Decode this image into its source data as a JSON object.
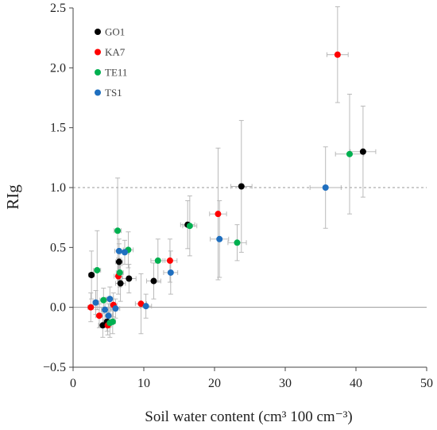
{
  "chart_data": {
    "type": "scatter",
    "xlabel": "Soil water content  (cm³ 100 cm⁻³)",
    "ylabel": "RIg",
    "xlim": [
      0,
      50
    ],
    "ylim": [
      -0.5,
      2.5
    ],
    "xticks": [
      "0",
      "10",
      "20",
      "30",
      "40",
      "50"
    ],
    "yticks": [
      "−0.5",
      "0.0",
      "0.5",
      "1.0",
      "1.5",
      "2.0",
      "2.5"
    ],
    "legend_position": "top-left",
    "reference_lines": [
      {
        "y": 0.0,
        "style": "solid"
      },
      {
        "y": 1.0,
        "style": "dashed"
      }
    ],
    "series": [
      {
        "name": "GO1",
        "color": "#000000",
        "points": [
          {
            "x": 2.6,
            "y": 0.27,
            "xerr": 0.4,
            "yerr": 0.2
          },
          {
            "x": 4.2,
            "y": -0.15,
            "xerr": 0.6,
            "yerr": 0.1
          },
          {
            "x": 4.8,
            "y": -0.12,
            "xerr": 0.5,
            "yerr": 0.08
          },
          {
            "x": 6.5,
            "y": 0.38,
            "xerr": 0.5,
            "yerr": 0.15
          },
          {
            "x": 6.7,
            "y": 0.2,
            "xerr": 0.7,
            "yerr": 0.15
          },
          {
            "x": 7.9,
            "y": 0.24,
            "xerr": 1.0,
            "yerr": 0.12
          },
          {
            "x": 11.4,
            "y": 0.22,
            "xerr": 1.0,
            "yerr": 0.15
          },
          {
            "x": 16.2,
            "y": 0.69,
            "xerr": 1.0,
            "yerr": 0.2
          },
          {
            "x": 23.8,
            "y": 1.01,
            "xerr": 1.5,
            "yerr": 0.55
          },
          {
            "x": 41.0,
            "y": 1.3,
            "xerr": 1.8,
            "yerr": 0.38
          }
        ]
      },
      {
        "name": "KA7",
        "color": "#ff0000",
        "points": [
          {
            "x": 2.5,
            "y": 0.0,
            "xerr": 0.4,
            "yerr": 0.12
          },
          {
            "x": 3.7,
            "y": -0.07,
            "xerr": 0.5,
            "yerr": 0.1
          },
          {
            "x": 4.9,
            "y": -0.15,
            "xerr": 0.5,
            "yerr": 0.08
          },
          {
            "x": 5.7,
            "y": 0.02,
            "xerr": 0.5,
            "yerr": 0.1
          },
          {
            "x": 6.4,
            "y": 0.26,
            "xerr": 0.6,
            "yerr": 0.15
          },
          {
            "x": 9.6,
            "y": 0.03,
            "xerr": 0.8,
            "yerr": 0.25
          },
          {
            "x": 13.7,
            "y": 0.39,
            "xerr": 1.0,
            "yerr": 0.18
          },
          {
            "x": 20.5,
            "y": 0.78,
            "xerr": 1.2,
            "yerr": 0.55
          },
          {
            "x": 37.4,
            "y": 2.11,
            "xerr": 1.5,
            "yerr": 0.4
          }
        ]
      },
      {
        "name": "TE11",
        "color": "#00b050",
        "points": [
          {
            "x": 3.4,
            "y": 0.31,
            "xerr": 0.5,
            "yerr": 0.33
          },
          {
            "x": 4.3,
            "y": 0.06,
            "xerr": 0.5,
            "yerr": 0.1
          },
          {
            "x": 5.2,
            "y": -0.13,
            "xerr": 0.5,
            "yerr": 0.12
          },
          {
            "x": 5.6,
            "y": -0.12,
            "xerr": 0.4,
            "yerr": 0.1
          },
          {
            "x": 6.3,
            "y": 0.64,
            "xerr": 0.5,
            "yerr": 0.44
          },
          {
            "x": 6.6,
            "y": 0.29,
            "xerr": 0.5,
            "yerr": 0.12
          },
          {
            "x": 7.8,
            "y": 0.48,
            "xerr": 0.7,
            "yerr": 0.15
          },
          {
            "x": 12.0,
            "y": 0.39,
            "xerr": 1.0,
            "yerr": 0.18
          },
          {
            "x": 16.5,
            "y": 0.68,
            "xerr": 1.0,
            "yerr": 0.25
          },
          {
            "x": 23.2,
            "y": 0.54,
            "xerr": 1.3,
            "yerr": 0.15
          },
          {
            "x": 39.1,
            "y": 1.28,
            "xerr": 2.0,
            "yerr": 0.5
          }
        ]
      },
      {
        "name": "TS1",
        "color": "#1f6fbf",
        "points": [
          {
            "x": 3.2,
            "y": 0.04,
            "xerr": 0.4,
            "yerr": 0.1
          },
          {
            "x": 4.5,
            "y": -0.02,
            "xerr": 0.5,
            "yerr": 0.1
          },
          {
            "x": 5.0,
            "y": -0.07,
            "xerr": 0.5,
            "yerr": 0.1
          },
          {
            "x": 5.2,
            "y": 0.07,
            "xerr": 0.5,
            "yerr": 0.1
          },
          {
            "x": 6.0,
            "y": -0.01,
            "xerr": 0.6,
            "yerr": 0.08
          },
          {
            "x": 6.5,
            "y": 0.47,
            "xerr": 0.6,
            "yerr": 0.1
          },
          {
            "x": 7.3,
            "y": 0.46,
            "xerr": 0.6,
            "yerr": 0.1
          },
          {
            "x": 10.3,
            "y": 0.01,
            "xerr": 0.8,
            "yerr": 0.1
          },
          {
            "x": 13.8,
            "y": 0.29,
            "xerr": 1.0,
            "yerr": 0.18
          },
          {
            "x": 20.7,
            "y": 0.57,
            "xerr": 1.3,
            "yerr": 0.32
          },
          {
            "x": 35.7,
            "y": 1.0,
            "xerr": 2.2,
            "yerr": 0.34
          }
        ]
      }
    ]
  }
}
